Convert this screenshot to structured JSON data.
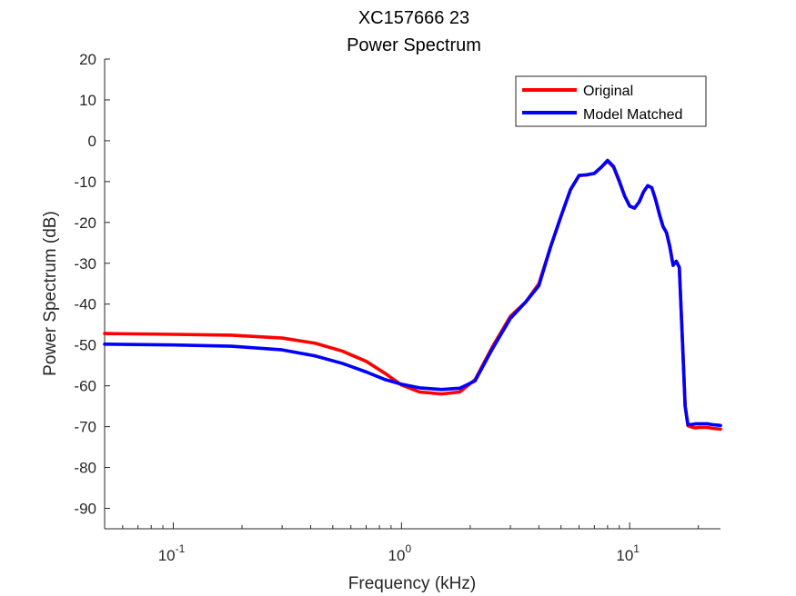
{
  "chart_data": {
    "type": "line",
    "title_lines": [
      "XC157666 23",
      "Power Spectrum"
    ],
    "xlabel": "Frequency (kHz)",
    "ylabel": "Power Spectrum (dB)",
    "xscale": "log",
    "xlim": [
      0.05,
      25
    ],
    "ylim": [
      -95,
      20
    ],
    "yticks": [
      20,
      10,
      0,
      -10,
      -20,
      -30,
      -40,
      -50,
      -60,
      -70,
      -80,
      -90
    ],
    "xticks": [
      {
        "value": 0.1,
        "base": "10",
        "exp": "-1"
      },
      {
        "value": 1,
        "base": "10",
        "exp": "0"
      },
      {
        "value": 10,
        "base": "10",
        "exp": "1"
      }
    ],
    "grid": false,
    "legend_position": "top-right",
    "series": [
      {
        "name": "Original",
        "color": "#ff0000",
        "x": [
          0.05,
          0.1,
          0.18,
          0.3,
          0.42,
          0.55,
          0.7,
          0.85,
          1.0,
          1.2,
          1.5,
          1.8,
          2.1,
          2.5,
          3.0,
          3.5,
          4.0,
          4.5,
          5.0,
          5.5,
          6.0,
          6.5,
          7.0,
          7.5,
          8.0,
          8.5,
          9.0,
          9.5,
          10.0,
          10.5,
          11.0,
          11.5,
          12.0,
          12.5,
          13.0,
          13.5,
          14.0,
          14.5,
          15.0,
          15.5,
          16.0,
          16.5,
          17.0,
          17.5,
          18.0,
          18.5,
          19.0,
          19.5,
          20.0,
          20.5,
          21.0,
          22.0,
          23.0,
          24.0,
          25.0
        ],
        "y": [
          -47.2,
          -47.4,
          -47.6,
          -48.3,
          -49.6,
          -51.5,
          -54.0,
          -57.0,
          -59.8,
          -61.5,
          -62.0,
          -61.5,
          -58.5,
          -50.5,
          -43.0,
          -39.5,
          -35.0,
          -26.0,
          -18.5,
          -12.0,
          -8.5,
          -8.4,
          -8.0,
          -6.5,
          -5.0,
          -6.5,
          -10.0,
          -13.5,
          -16.0,
          -16.5,
          -15.0,
          -12.5,
          -11.0,
          -11.5,
          -14.5,
          -18.0,
          -21.0,
          -22.5,
          -26.0,
          -30.5,
          -29.5,
          -31.0,
          -48.0,
          -65.0,
          -69.8,
          -70.0,
          -70.2,
          -70.3,
          -70.2,
          -70.2,
          -70.2,
          -70.2,
          -70.4,
          -70.5,
          -70.6
        ]
      },
      {
        "name": "Model Matched",
        "color": "#0000ff",
        "x": [
          0.05,
          0.1,
          0.18,
          0.3,
          0.42,
          0.55,
          0.7,
          0.85,
          1.0,
          1.2,
          1.5,
          1.8,
          2.1,
          2.5,
          3.0,
          3.5,
          4.0,
          4.5,
          5.0,
          5.5,
          6.0,
          6.5,
          7.0,
          7.5,
          8.0,
          8.5,
          9.0,
          9.5,
          10.0,
          10.5,
          11.0,
          11.5,
          12.0,
          12.5,
          13.0,
          13.5,
          14.0,
          14.5,
          15.0,
          15.5,
          16.0,
          16.5,
          17.0,
          17.5,
          18.0,
          18.5,
          19.0,
          19.5,
          20.0,
          20.5,
          21.0,
          22.0,
          23.0,
          24.0,
          25.0
        ],
        "y": [
          -49.8,
          -50.0,
          -50.3,
          -51.2,
          -52.7,
          -54.5,
          -56.6,
          -58.5,
          -59.6,
          -60.5,
          -60.9,
          -60.6,
          -58.8,
          -51.0,
          -43.5,
          -39.5,
          -35.5,
          -26.0,
          -18.5,
          -12.0,
          -8.5,
          -8.3,
          -8.0,
          -6.5,
          -4.8,
          -6.3,
          -9.8,
          -13.5,
          -16.0,
          -16.5,
          -15.0,
          -12.5,
          -11.0,
          -11.5,
          -14.5,
          -18.0,
          -21.0,
          -22.5,
          -26.0,
          -30.5,
          -29.5,
          -31.0,
          -48.0,
          -65.0,
          -69.5,
          -69.5,
          -69.4,
          -69.3,
          -69.3,
          -69.3,
          -69.3,
          -69.3,
          -69.5,
          -69.6,
          -69.7
        ]
      }
    ]
  }
}
